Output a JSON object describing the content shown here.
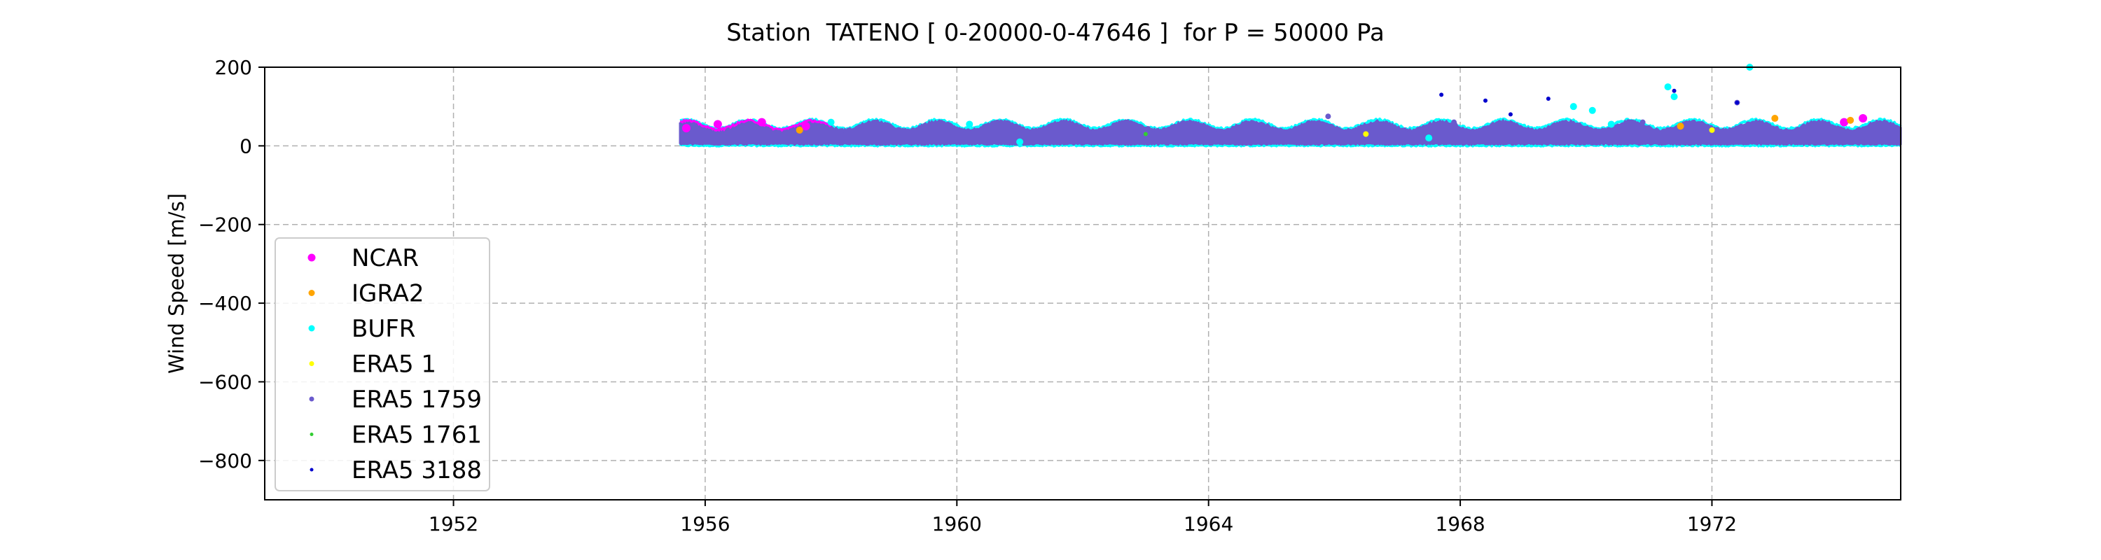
{
  "chart_data": {
    "type": "scatter",
    "title": "Station  TATENO [ 0-20000-0-47646 ]  for P = 50000 Pa",
    "xlabel": "",
    "ylabel": "Wind Speed [m/s]",
    "xlim": [
      1949.0,
      1975.0
    ],
    "ylim": [
      -900,
      200
    ],
    "x_ticks": [
      1952,
      1956,
      1960,
      1964,
      1968,
      1972
    ],
    "y_ticks": [
      200,
      0,
      -200,
      -400,
      -600,
      -800
    ],
    "x_tick_labels": [
      "1952",
      "1956",
      "1960",
      "1964",
      "1968",
      "1972"
    ],
    "y_tick_labels": [
      "200",
      "0",
      "−200",
      "−400",
      "−600",
      "−800"
    ],
    "grid": true,
    "legend_position": "lower-left",
    "series": [
      {
        "name": "NCAR",
        "color": "#ff00ff",
        "marker_size": 6,
        "points": [
          [
            1955.7,
            45
          ],
          [
            1956.2,
            55
          ],
          [
            1956.9,
            60
          ],
          [
            1957.6,
            50
          ],
          [
            1974.1,
            60
          ],
          [
            1974.4,
            70
          ]
        ]
      },
      {
        "name": "IGRA2",
        "color": "#ffa500",
        "marker_size": 5,
        "points": [
          [
            1957.5,
            40
          ],
          [
            1971.5,
            50
          ],
          [
            1973.0,
            70
          ],
          [
            1974.2,
            65
          ]
        ]
      },
      {
        "name": "BUFR",
        "color": "#00ffff",
        "marker_size": 5,
        "points": [
          [
            1958.0,
            60
          ],
          [
            1960.2,
            55
          ],
          [
            1961.0,
            10
          ],
          [
            1967.5,
            20
          ],
          [
            1969.8,
            100
          ],
          [
            1970.1,
            90
          ],
          [
            1970.4,
            55
          ],
          [
            1971.3,
            150
          ],
          [
            1971.4,
            125
          ],
          [
            1972.6,
            200
          ]
        ]
      },
      {
        "name": "ERA5 1",
        "color": "#ffff00",
        "marker_size": 4,
        "points": [
          [
            1966.5,
            30
          ],
          [
            1972.0,
            40
          ]
        ]
      },
      {
        "name": "ERA5 1759",
        "color": "#6a5acd",
        "marker_size": 4,
        "points": [
          [
            1965.9,
            75
          ],
          [
            1967.9,
            60
          ],
          [
            1970.9,
            60
          ],
          [
            1972.4,
            110
          ]
        ]
      },
      {
        "name": "ERA5 1761",
        "color": "#32cd32",
        "marker_size": 3,
        "points": [
          [
            1963.0,
            30
          ]
        ]
      },
      {
        "name": "ERA5 3188",
        "color": "#0000cd",
        "marker_size": 3,
        "points": [
          [
            1967.7,
            130
          ],
          [
            1968.4,
            115
          ],
          [
            1968.8,
            80
          ],
          [
            1969.4,
            120
          ],
          [
            1971.4,
            140
          ],
          [
            1972.4,
            110
          ]
        ]
      }
    ],
    "band": {
      "x_start": 1955.6,
      "x_end": 1975.0,
      "period_years": 1.0,
      "peak_month_fraction": 0.1,
      "base_min": 5,
      "base_max": 40,
      "seasonal_amplitude": 22,
      "edge_colors": [
        "#00ffff",
        "#ff00ff"
      ],
      "fill_color": "#6a5acd"
    }
  }
}
